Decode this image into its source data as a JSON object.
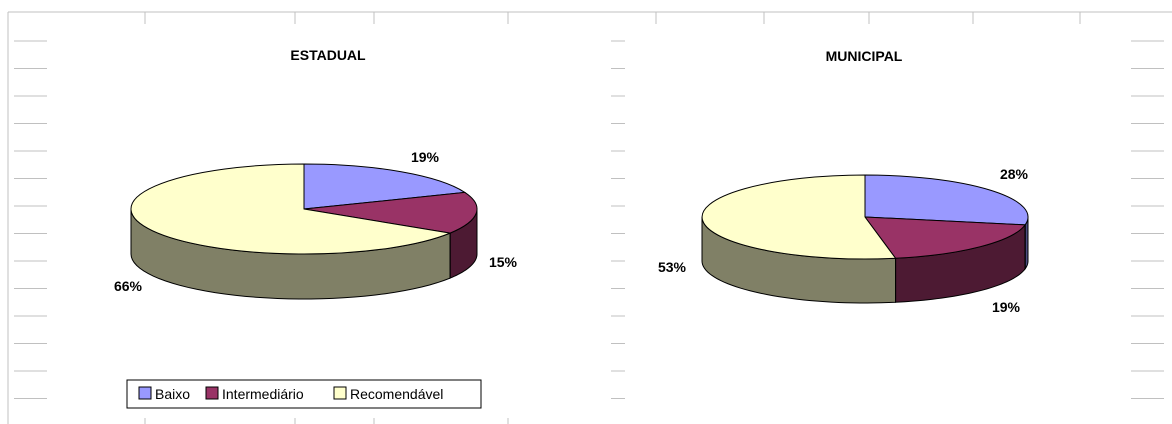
{
  "colors": {
    "background": "#ffffff",
    "grid_line": "#c0c0c0",
    "outline": "#000000"
  },
  "legend": {
    "items": [
      {
        "label": "Baixo",
        "color": "#9999ff"
      },
      {
        "label": "Intermediário",
        "color": "#993366"
      },
      {
        "label": "Recomendável",
        "color": "#ffffcc"
      }
    ],
    "placement": "bottom-left"
  },
  "chart_data": [
    {
      "type": "pie",
      "title": "ESTADUAL",
      "categories": [
        "Baixo",
        "Intermediário",
        "Recomendável"
      ],
      "values": [
        19,
        15,
        66
      ],
      "labels": [
        "19%",
        "15%",
        "66%"
      ],
      "style": "3d",
      "colors": [
        "#9999ff",
        "#993366",
        "#ffffcc"
      ]
    },
    {
      "type": "pie",
      "title": "MUNICIPAL",
      "categories": [
        "Baixo",
        "Intermediário",
        "Recomendável"
      ],
      "values": [
        28,
        19,
        53
      ],
      "labels": [
        "28%",
        "19%",
        "53%"
      ],
      "style": "3d",
      "colors": [
        "#9999ff",
        "#993366",
        "#ffffcc"
      ]
    }
  ]
}
